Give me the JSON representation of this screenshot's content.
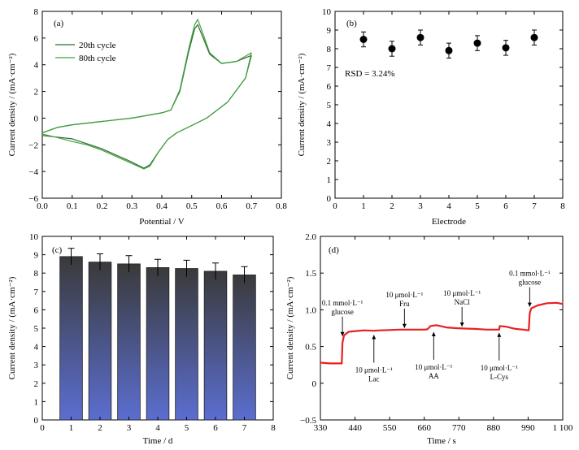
{
  "chart_data": [
    {
      "panel": "(a)",
      "type": "line",
      "xlabel": "Potential / V",
      "ylabel": "Current density / (mA·cm⁻²)",
      "xlim": [
        0.0,
        0.8
      ],
      "ylim": [
        -6,
        8
      ],
      "xticks": [
        "0.0",
        "0.1",
        "0.2",
        "0.3",
        "0.4",
        "0.5",
        "0.6",
        "0.7",
        "0.8"
      ],
      "yticks": [
        "−6",
        "−4",
        "−2",
        "0",
        "2",
        "4",
        "6",
        "8"
      ],
      "legend": "top-left",
      "colors": {
        "20th cycle": "#2f6b2f",
        "80th cycle": "#3ea03e"
      },
      "series": [
        {
          "name": "20th cycle",
          "forward": [
            [
              0.0,
              -1.1
            ],
            [
              0.05,
              -0.7
            ],
            [
              0.1,
              -0.5
            ],
            [
              0.2,
              -0.25
            ],
            [
              0.3,
              0.0
            ],
            [
              0.4,
              0.4
            ],
            [
              0.43,
              0.6
            ],
            [
              0.46,
              2.0
            ],
            [
              0.49,
              5.0
            ],
            [
              0.51,
              6.7
            ],
            [
              0.52,
              7.0
            ],
            [
              0.535,
              6.2
            ],
            [
              0.56,
              4.8
            ],
            [
              0.6,
              4.1
            ],
            [
              0.65,
              4.25
            ],
            [
              0.7,
              4.7
            ]
          ],
          "reverse": [
            [
              0.7,
              4.7
            ],
            [
              0.68,
              3.0
            ],
            [
              0.62,
              1.2
            ],
            [
              0.55,
              0.0
            ],
            [
              0.5,
              -0.55
            ],
            [
              0.45,
              -1.1
            ],
            [
              0.42,
              -1.6
            ],
            [
              0.39,
              -2.5
            ],
            [
              0.36,
              -3.5
            ],
            [
              0.34,
              -3.75
            ],
            [
              0.3,
              -3.3
            ],
            [
              0.2,
              -2.3
            ],
            [
              0.1,
              -1.55
            ],
            [
              0.0,
              -1.3
            ]
          ]
        },
        {
          "name": "80th cycle",
          "forward": [
            [
              0.0,
              -1.1
            ],
            [
              0.05,
              -0.7
            ],
            [
              0.1,
              -0.5
            ],
            [
              0.2,
              -0.25
            ],
            [
              0.3,
              0.0
            ],
            [
              0.4,
              0.4
            ],
            [
              0.43,
              0.6
            ],
            [
              0.46,
              2.1
            ],
            [
              0.49,
              5.2
            ],
            [
              0.51,
              7.0
            ],
            [
              0.52,
              7.4
            ],
            [
              0.535,
              6.5
            ],
            [
              0.56,
              4.9
            ],
            [
              0.6,
              4.1
            ],
            [
              0.65,
              4.25
            ],
            [
              0.7,
              4.9
            ]
          ],
          "reverse": [
            [
              0.7,
              4.9
            ],
            [
              0.68,
              3.0
            ],
            [
              0.62,
              1.2
            ],
            [
              0.55,
              0.0
            ],
            [
              0.5,
              -0.55
            ],
            [
              0.45,
              -1.1
            ],
            [
              0.42,
              -1.6
            ],
            [
              0.39,
              -2.5
            ],
            [
              0.36,
              -3.6
            ],
            [
              0.34,
              -3.8
            ],
            [
              0.3,
              -3.4
            ],
            [
              0.2,
              -2.4
            ],
            [
              0.15,
              -2.0
            ],
            [
              0.1,
              -1.75
            ],
            [
              0.05,
              -1.45
            ],
            [
              0.0,
              -1.2
            ]
          ]
        }
      ]
    },
    {
      "panel": "(b)",
      "type": "scatter",
      "xlabel": "Electrode",
      "ylabel": "Current density / (mA·cm⁻²)",
      "xlim": [
        0,
        8
      ],
      "ylim": [
        0,
        10
      ],
      "xticks": [
        "0",
        "1",
        "2",
        "3",
        "4",
        "5",
        "6",
        "7",
        "8"
      ],
      "yticks": [
        "0",
        "1",
        "2",
        "3",
        "4",
        "5",
        "6",
        "7",
        "8",
        "9",
        "10"
      ],
      "annotation": "RSD = 3.24%",
      "x": [
        1,
        2,
        3,
        4,
        5,
        6,
        7
      ],
      "values": [
        8.5,
        8.0,
        8.6,
        7.9,
        8.3,
        8.05,
        8.6
      ],
      "errors": [
        0.4,
        0.4,
        0.4,
        0.4,
        0.4,
        0.4,
        0.4
      ]
    },
    {
      "panel": "(c)",
      "type": "bar",
      "xlabel": "Time / d",
      "ylabel": "Current density / (mA·cm⁻²)",
      "xlim": [
        0,
        8
      ],
      "ylim": [
        0,
        10
      ],
      "xticks": [
        "0",
        "1",
        "2",
        "3",
        "4",
        "5",
        "6",
        "7",
        "8"
      ],
      "yticks": [
        "0",
        "1",
        "2",
        "3",
        "4",
        "5",
        "6",
        "7",
        "8",
        "9",
        "10"
      ],
      "categories": [
        "1",
        "2",
        "3",
        "4",
        "5",
        "6",
        "7"
      ],
      "values": [
        8.9,
        8.6,
        8.5,
        8.3,
        8.25,
        8.1,
        7.9
      ],
      "errors": [
        0.45,
        0.45,
        0.45,
        0.45,
        0.45,
        0.45,
        0.45
      ],
      "colors": {
        "top": "#3a3a3a",
        "bottom": "#5b6ed0"
      }
    },
    {
      "panel": "(d)",
      "type": "line",
      "xlabel": "Time / s",
      "ylabel": "Current density / (mA·cm⁻²)",
      "xlim": [
        330,
        1100
      ],
      "ylim": [
        -0.5,
        2.0
      ],
      "xticks": [
        "330",
        "440",
        "550",
        "660",
        "770",
        "880",
        "990",
        "1 100"
      ],
      "yticks": [
        "−0.5",
        "0",
        "0.5",
        "1.0",
        "1.5",
        "2.0"
      ],
      "color": "#e82020",
      "trace": [
        [
          330,
          0.28
        ],
        [
          360,
          0.27
        ],
        [
          390,
          0.27
        ],
        [
          398,
          0.27
        ],
        [
          400,
          0.55
        ],
        [
          405,
          0.65
        ],
        [
          410,
          0.67
        ],
        [
          420,
          0.7
        ],
        [
          440,
          0.71
        ],
        [
          470,
          0.72
        ],
        [
          500,
          0.715
        ],
        [
          520,
          0.72
        ],
        [
          550,
          0.725
        ],
        [
          580,
          0.73
        ],
        [
          610,
          0.73
        ],
        [
          640,
          0.73
        ],
        [
          660,
          0.73
        ],
        [
          670,
          0.735
        ],
        [
          680,
          0.78
        ],
        [
          700,
          0.79
        ],
        [
          730,
          0.76
        ],
        [
          760,
          0.75
        ],
        [
          790,
          0.745
        ],
        [
          820,
          0.74
        ],
        [
          860,
          0.73
        ],
        [
          880,
          0.73
        ],
        [
          898,
          0.73
        ],
        [
          900,
          0.78
        ],
        [
          920,
          0.77
        ],
        [
          950,
          0.74
        ],
        [
          975,
          0.73
        ],
        [
          992,
          0.72
        ],
        [
          995,
          0.95
        ],
        [
          1000,
          1.02
        ],
        [
          1020,
          1.06
        ],
        [
          1050,
          1.09
        ],
        [
          1080,
          1.095
        ],
        [
          1100,
          1.08
        ]
      ],
      "annotations": [
        {
          "lines": [
            "0.1 mmol·L⁻¹",
            "glucose"
          ],
          "x": 400,
          "y": 0.62
        },
        {
          "lines": [
            "10 μmol·L⁻¹",
            "Lac"
          ],
          "x": 500,
          "y": 0.7
        },
        {
          "lines": [
            "10 μmol·L⁻¹",
            "Fru"
          ],
          "x": 597,
          "y": 0.73
        },
        {
          "lines": [
            "10 μmol·L⁻¹",
            "AA"
          ],
          "x": 690,
          "y": 0.74
        },
        {
          "lines": [
            "10 μmol·L⁻¹",
            "NaCl"
          ],
          "x": 780,
          "y": 0.75
        },
        {
          "lines": [
            "10 μmol·L⁻¹",
            "L-Cys"
          ],
          "x": 898,
          "y": 0.73
        },
        {
          "lines": [
            "0.1 mmol·L⁻¹",
            "glucose"
          ],
          "x": 995,
          "y": 1.02
        }
      ]
    }
  ]
}
